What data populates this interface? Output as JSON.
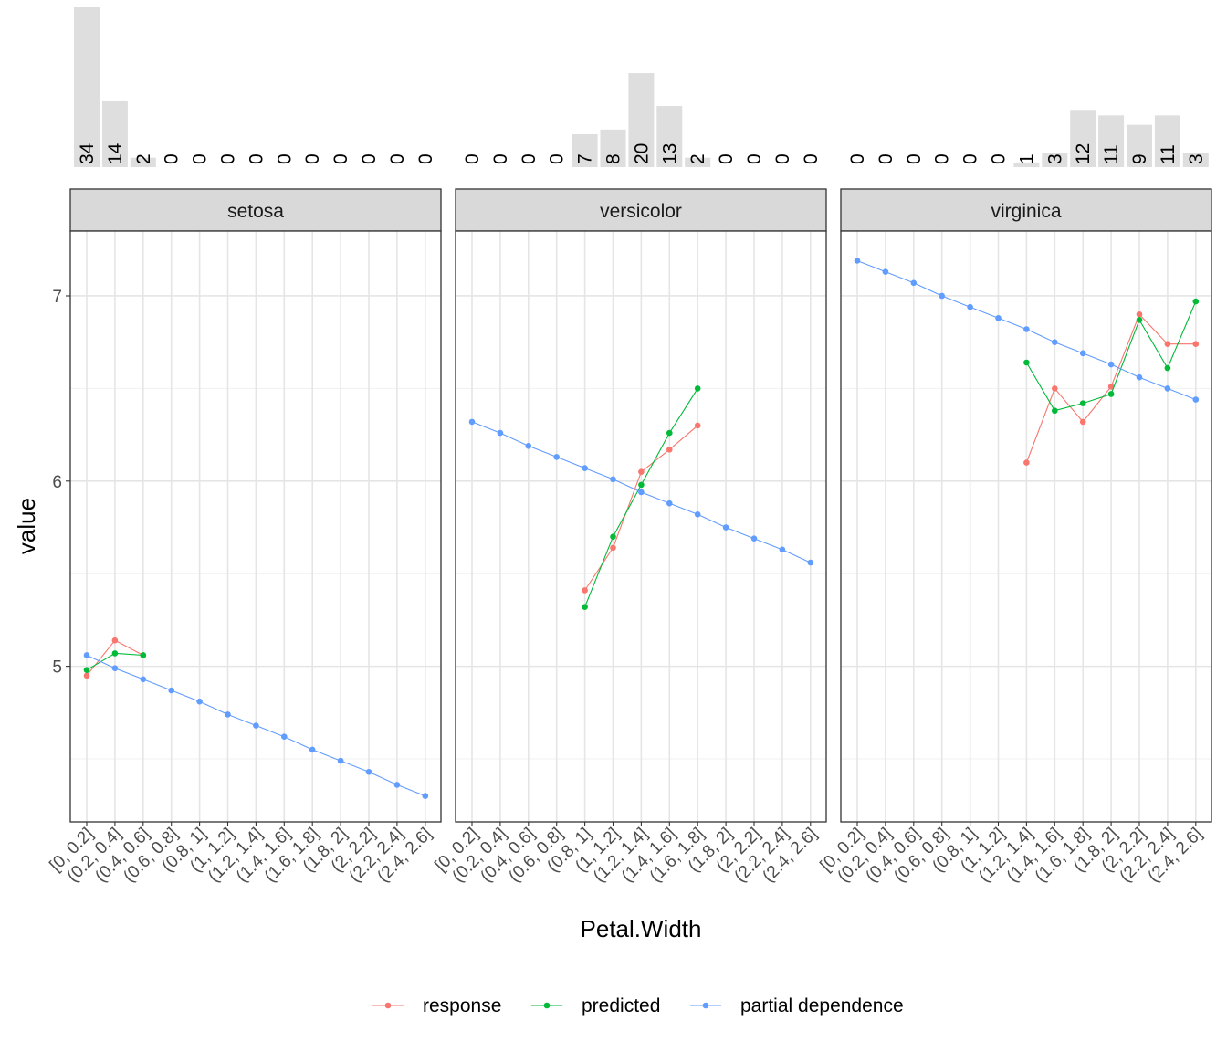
{
  "chart_data": {
    "type": "line",
    "xlabel": "Petal.Width",
    "ylabel": "value",
    "categories": [
      "[0, 0.2]",
      "(0.2, 0.4]",
      "(0.4, 0.6]",
      "(0.6, 0.8]",
      "(0.8, 1]",
      "(1, 1.2]",
      "(1.2, 1.4]",
      "(1.4, 1.6]",
      "(1.6, 1.8]",
      "(1.8, 2]",
      "(2, 2.2]",
      "(2.2, 2.4]",
      "(2.4, 2.6]"
    ],
    "yticks": [
      5,
      6,
      7
    ],
    "ylim": [
      4.16,
      7.35
    ],
    "grid": true,
    "legend_position": "bottom",
    "colors": {
      "response": "#F8766D",
      "predicted": "#00BA38",
      "partial dependence": "#619CFF",
      "bars": "#dedede"
    },
    "legend": [
      "response",
      "predicted",
      "partial dependence"
    ],
    "panels": [
      {
        "name": "setosa",
        "counts": [
          34,
          14,
          2,
          0,
          0,
          0,
          0,
          0,
          0,
          0,
          0,
          0,
          0
        ],
        "series": [
          {
            "name": "response",
            "values": [
              4.95,
              5.14,
              5.06,
              null,
              null,
              null,
              null,
              null,
              null,
              null,
              null,
              null,
              null
            ]
          },
          {
            "name": "predicted",
            "values": [
              4.98,
              5.07,
              5.06,
              null,
              null,
              null,
              null,
              null,
              null,
              null,
              null,
              null,
              null
            ]
          },
          {
            "name": "partial dependence",
            "values": [
              5.06,
              4.99,
              4.93,
              4.87,
              4.81,
              4.74,
              4.68,
              4.62,
              4.55,
              4.49,
              4.43,
              4.36,
              4.3
            ]
          }
        ]
      },
      {
        "name": "versicolor",
        "counts": [
          0,
          0,
          0,
          0,
          7,
          8,
          20,
          13,
          2,
          0,
          0,
          0,
          0
        ],
        "series": [
          {
            "name": "response",
            "values": [
              null,
              null,
              null,
              null,
              5.41,
              5.64,
              6.05,
              6.17,
              6.3,
              null,
              null,
              null,
              null
            ]
          },
          {
            "name": "predicted",
            "values": [
              null,
              null,
              null,
              null,
              5.32,
              5.7,
              5.98,
              6.26,
              6.5,
              null,
              null,
              null,
              null
            ]
          },
          {
            "name": "partial dependence",
            "values": [
              6.32,
              6.26,
              6.19,
              6.13,
              6.07,
              6.01,
              5.94,
              5.88,
              5.82,
              5.75,
              5.69,
              5.63,
              5.56
            ]
          }
        ]
      },
      {
        "name": "virginica",
        "counts": [
          0,
          0,
          0,
          0,
          0,
          0,
          1,
          3,
          12,
          11,
          9,
          11,
          3
        ],
        "series": [
          {
            "name": "response",
            "values": [
              null,
              null,
              null,
              null,
              null,
              null,
              6.1,
              6.5,
              6.32,
              6.51,
              6.9,
              6.74,
              6.74
            ]
          },
          {
            "name": "predicted",
            "values": [
              null,
              null,
              null,
              null,
              null,
              null,
              6.64,
              6.38,
              6.42,
              6.47,
              6.87,
              6.61,
              6.97
            ]
          },
          {
            "name": "partial dependence",
            "values": [
              7.19,
              7.13,
              7.07,
              7.0,
              6.94,
              6.88,
              6.82,
              6.75,
              6.69,
              6.63,
              6.56,
              6.5,
              6.44
            ]
          }
        ]
      }
    ]
  }
}
